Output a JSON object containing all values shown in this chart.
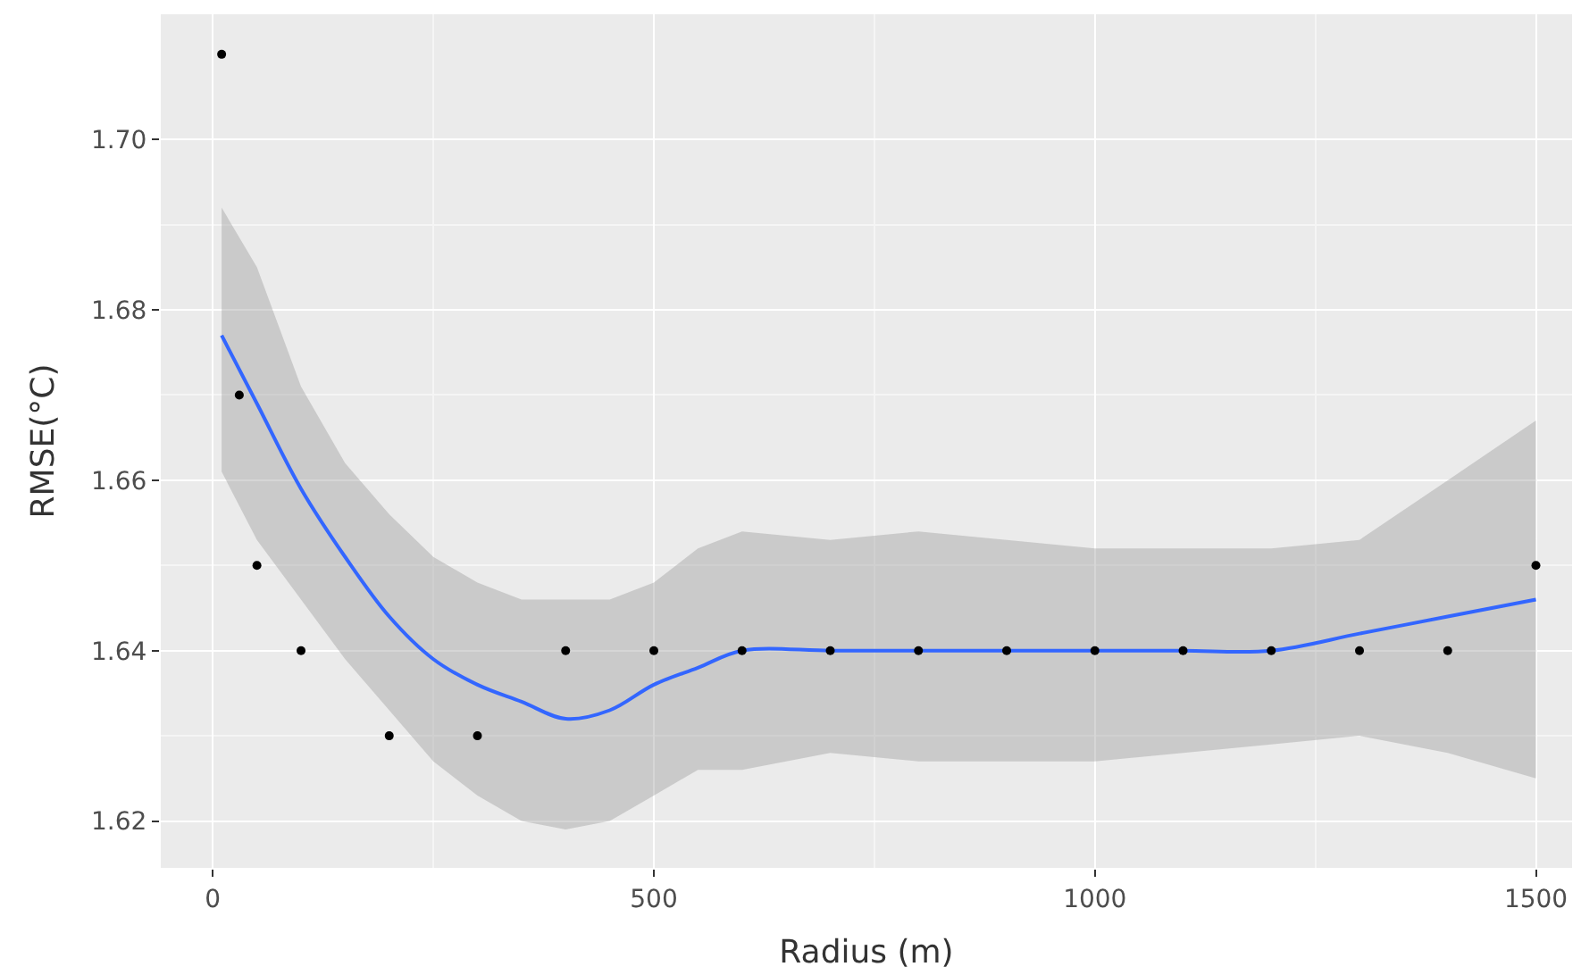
{
  "chart_data": {
    "type": "scatter",
    "xlabel": "Radius (m)",
    "ylabel": "RMSE(°C)",
    "xlim": [
      -59,
      1541
    ],
    "ylim": [
      1.6145,
      1.7147
    ],
    "xticks": [
      0,
      500,
      1000,
      1500
    ],
    "yticks": [
      1.62,
      1.64,
      1.66,
      1.68,
      {
        "value": 1.7,
        "label": "1.70"
      }
    ],
    "grid": true,
    "series": [
      {
        "color": "#000000",
        "marker": "circle",
        "x": [
          10,
          30,
          50,
          100,
          200,
          300,
          400,
          500,
          600,
          700,
          800,
          900,
          1000,
          1100,
          1200,
          1300,
          1400,
          1500
        ],
        "values": [
          1.71,
          1.67,
          1.65,
          1.64,
          1.63,
          1.63,
          1.64,
          1.64,
          1.64,
          1.64,
          1.64,
          1.64,
          1.64,
          1.64,
          1.64,
          1.64,
          1.64,
          1.65
        ]
      },
      {
        "type": "line",
        "color": "#3366ff",
        "x": [
          10,
          50,
          100,
          150,
          200,
          250,
          300,
          350,
          400,
          450,
          500,
          550,
          600,
          700,
          800,
          900,
          1000,
          1100,
          1200,
          1300,
          1400,
          1500
        ],
        "values": [
          1.677,
          1.669,
          1.659,
          1.651,
          1.644,
          1.639,
          1.636,
          1.634,
          1.632,
          1.633,
          1.636,
          1.638,
          1.64,
          1.64,
          1.64,
          1.64,
          1.64,
          1.64,
          1.64,
          1.642,
          1.644,
          1.646
        ],
        "upper": [
          1.692,
          1.685,
          1.671,
          1.662,
          1.656,
          1.651,
          1.648,
          1.646,
          1.646,
          1.646,
          1.648,
          1.652,
          1.654,
          1.653,
          1.654,
          1.653,
          1.652,
          1.652,
          1.652,
          1.653,
          1.66,
          1.667
        ],
        "lower": [
          1.661,
          1.653,
          1.646,
          1.639,
          1.633,
          1.627,
          1.623,
          1.62,
          1.619,
          1.62,
          1.623,
          1.626,
          1.626,
          1.628,
          1.627,
          1.627,
          1.627,
          1.628,
          1.629,
          1.63,
          1.628,
          1.625
        ]
      }
    ]
  }
}
